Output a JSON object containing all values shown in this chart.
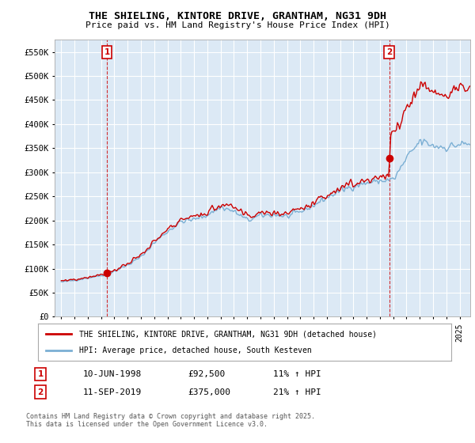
{
  "title": "THE SHIELING, KINTORE DRIVE, GRANTHAM, NG31 9DH",
  "subtitle": "Price paid vs. HM Land Registry's House Price Index (HPI)",
  "legend_line1": "THE SHIELING, KINTORE DRIVE, GRANTHAM, NG31 9DH (detached house)",
  "legend_line2": "HPI: Average price, detached house, South Kesteven",
  "transaction1_date": "10-JUN-1998",
  "transaction1_price": "£92,500",
  "transaction1_hpi": "11% ↑ HPI",
  "transaction2_date": "11-SEP-2019",
  "transaction2_price": "£375,000",
  "transaction2_hpi": "21% ↑ HPI",
  "footer": "Contains HM Land Registry data © Crown copyright and database right 2025.\nThis data is licensed under the Open Government Licence v3.0.",
  "hpi_color": "#7bafd4",
  "price_color": "#cc0000",
  "vline_color": "#cc0000",
  "plot_bg_color": "#dce9f5",
  "background_color": "#ffffff",
  "grid_color": "#ffffff",
  "transaction1_x": 1998.44,
  "transaction2_x": 2019.69,
  "transaction1_price_val": 92500,
  "transaction2_price_val": 375000,
  "ylim_min": 0,
  "ylim_max": 575000,
  "xlim_min": 1994.5,
  "xlim_max": 2025.8,
  "hpi_keypoints": {
    "1995": 72000,
    "1996": 76000,
    "1997": 81000,
    "1998": 86000,
    "1999": 95000,
    "2000": 108000,
    "2001": 125000,
    "2002": 155000,
    "2003": 178000,
    "2004": 198000,
    "2005": 202000,
    "2006": 212000,
    "2007": 228000,
    "2008": 218000,
    "2009": 200000,
    "2010": 210000,
    "2011": 212000,
    "2012": 208000,
    "2013": 218000,
    "2014": 232000,
    "2015": 248000,
    "2016": 262000,
    "2017": 272000,
    "2018": 278000,
    "2019": 282000,
    "2020": 285000,
    "2021": 330000,
    "2022": 365000,
    "2023": 355000,
    "2024": 352000,
    "2025": 358000
  }
}
